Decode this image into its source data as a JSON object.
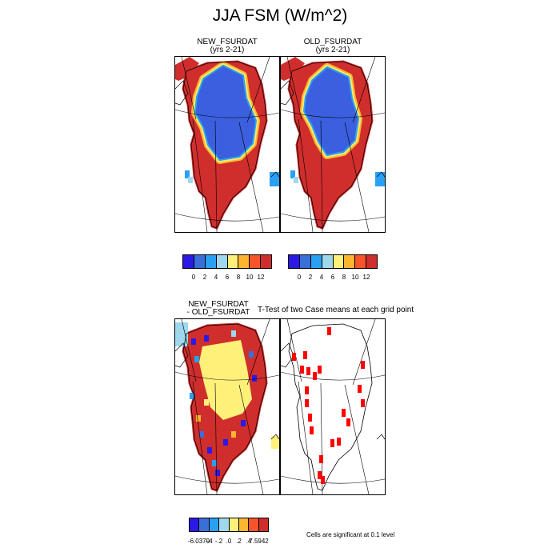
{
  "figure": {
    "title": "JJA FSM (W/m^2)"
  },
  "panels": {
    "new": {
      "title": "NEW_FSURDAT",
      "subtitle": "(yrs 2-21)"
    },
    "old": {
      "title": "OLD_FSURDAT",
      "subtitle": "(yrs 2-21)"
    },
    "diff": {
      "title_line1": "NEW_FSURDAT",
      "title_line2": "- OLD_FSURDAT"
    },
    "ttest": {
      "title": "T-Test of two Case means at each grid point",
      "note": "Cells are significant at 0.1 level"
    }
  },
  "colorbars": {
    "top": {
      "colors": [
        "#2b19e6",
        "#3b6fd8",
        "#2aa0f2",
        "#9fd8ec",
        "#fff07a",
        "#fdb52f",
        "#f8542a",
        "#cf2e2c"
      ],
      "labels": [
        "0",
        "2",
        "4",
        "6",
        "8",
        "10",
        "12"
      ]
    },
    "diff": {
      "colors": [
        "#2b19e6",
        "#3b6fd8",
        "#2aa0f2",
        "#9fd8ec",
        "#fff07a",
        "#fdb52f",
        "#f8542a",
        "#cf2e2c"
      ],
      "labels": [
        "-6.0379",
        "-.4",
        "-.2",
        ".0",
        ".2",
        ".4",
        "7.5942"
      ]
    }
  },
  "map_colors": {
    "ice": "#3b5fde",
    "ice_edge": "#2aa0f2",
    "edge_light": "#9fd8ec",
    "edge_yellow": "#ffe86a",
    "edge_orange": "#fdb52f",
    "land": "#cf2e2c",
    "diff_center": "#fff07a",
    "sig": "#ff0000"
  }
}
